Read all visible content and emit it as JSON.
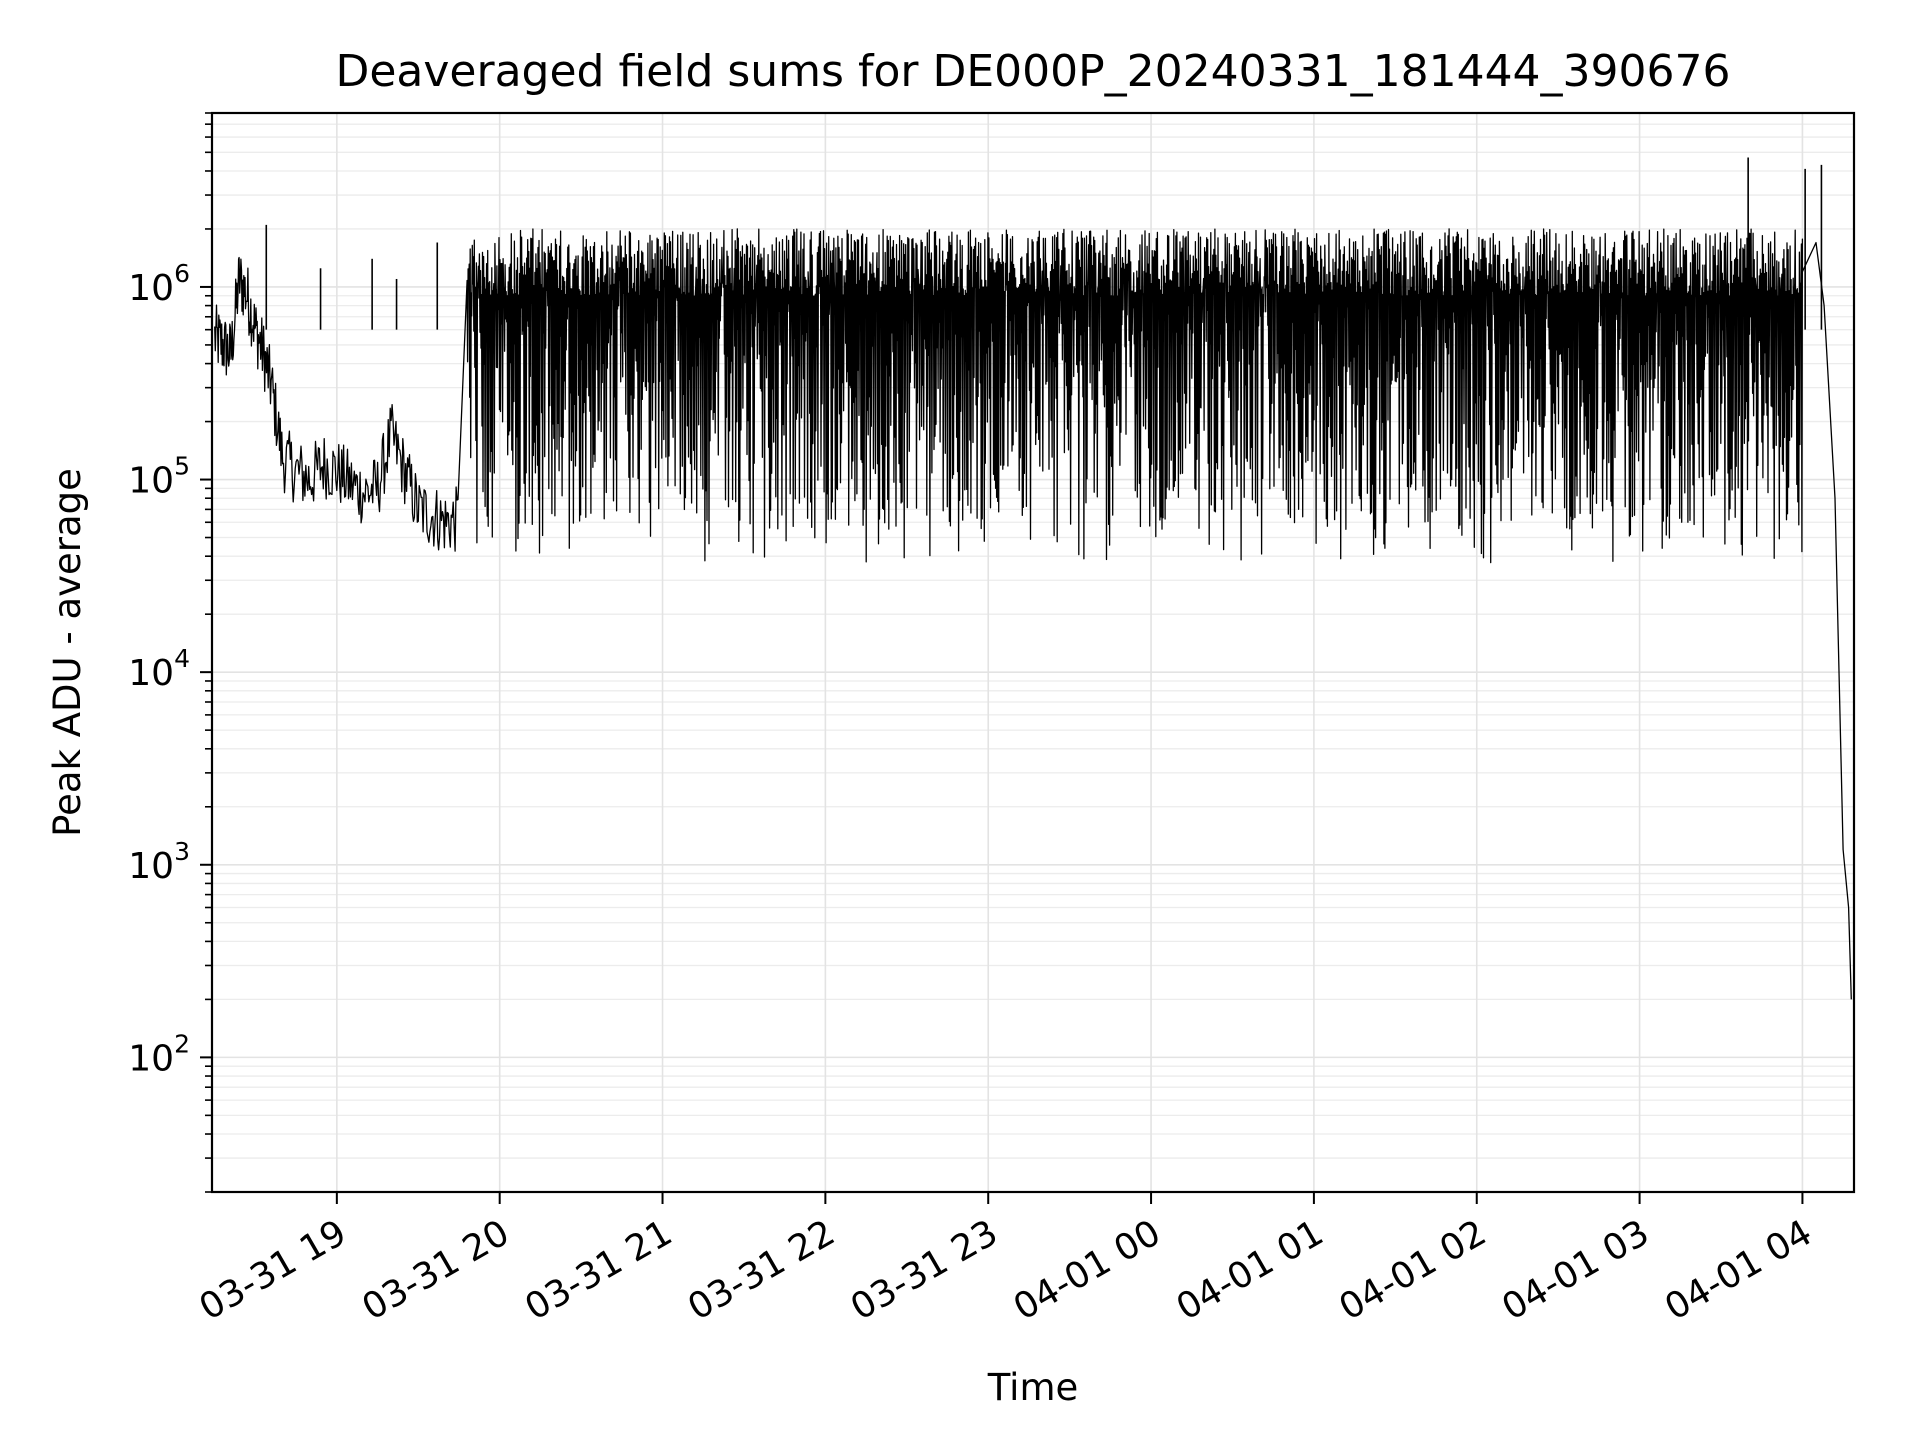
{
  "chart_data": {
    "type": "line",
    "title": "Deaveraged field sums for DE000P_20240331_181444_390676",
    "xlabel": "Time",
    "ylabel": "Peak ADU - average",
    "yscale": "log",
    "ylim": [
      20,
      8000000
    ],
    "xlim": [
      "2024-03-31 18:14",
      "2024-04-01 04:19"
    ],
    "grid": true,
    "series_color": "#000000",
    "x_ticks": [
      {
        "value": "2024-03-31 19:00",
        "label": "03-31 19"
      },
      {
        "value": "2024-03-31 20:00",
        "label": "03-31 20"
      },
      {
        "value": "2024-03-31 21:00",
        "label": "03-31 21"
      },
      {
        "value": "2024-03-31 22:00",
        "label": "03-31 22"
      },
      {
        "value": "2024-03-31 23:00",
        "label": "03-31 23"
      },
      {
        "value": "2024-04-01 00:00",
        "label": "04-01 00"
      },
      {
        "value": "2024-04-01 01:00",
        "label": "04-01 01"
      },
      {
        "value": "2024-04-01 02:00",
        "label": "04-01 02"
      },
      {
        "value": "2024-04-01 03:00",
        "label": "04-01 03"
      },
      {
        "value": "2024-04-01 04:00",
        "label": "04-01 04"
      }
    ],
    "y_ticks": [
      {
        "value": 100,
        "base": "10",
        "exp": "2"
      },
      {
        "value": 1000,
        "base": "10",
        "exp": "3"
      },
      {
        "value": 10000,
        "base": "10",
        "exp": "4"
      },
      {
        "value": 100000,
        "base": "10",
        "exp": "5"
      },
      {
        "value": 1000000,
        "base": "10",
        "exp": "6"
      }
    ],
    "series": [
      {
        "points": [
          [
            "2024-03-31 18:15",
            550000
          ],
          [
            "2024-03-31 18:18",
            500000
          ],
          [
            "2024-03-31 18:21",
            450000
          ],
          [
            "2024-03-31 18:24",
            1100000
          ],
          [
            "2024-03-31 18:27",
            900000
          ],
          [
            "2024-03-31 18:30",
            600000
          ],
          [
            "2024-03-31 18:33",
            450000
          ],
          [
            "2024-03-31 18:36",
            300000
          ],
          [
            "2024-03-31 18:40",
            130000
          ],
          [
            "2024-03-31 18:45",
            110000
          ],
          [
            "2024-03-31 18:50",
            100000
          ],
          [
            "2024-03-31 18:55",
            120000
          ],
          [
            "2024-03-31 19:00",
            110000
          ],
          [
            "2024-03-31 19:05",
            95000
          ],
          [
            "2024-03-31 19:10",
            85000
          ],
          [
            "2024-03-31 19:15",
            90000
          ],
          [
            "2024-03-31 19:20",
            170000
          ],
          [
            "2024-03-31 19:25",
            110000
          ],
          [
            "2024-03-31 19:30",
            70000
          ],
          [
            "2024-03-31 19:35",
            65000
          ],
          [
            "2024-03-31 19:40",
            60000
          ],
          [
            "2024-03-31 19:45",
            62000
          ],
          [
            "2024-03-31 19:50",
            60000
          ],
          [
            "2024-03-31 19:55",
            58000
          ],
          [
            "2024-04-01 04:00",
            1200000
          ],
          [
            "2024-04-01 04:05",
            1700000
          ],
          [
            "2024-04-01 04:08",
            800000
          ],
          [
            "2024-04-01 04:12",
            80000
          ],
          [
            "2024-04-01 04:15",
            1200
          ],
          [
            "2024-04-01 04:17",
            600
          ],
          [
            "2024-04-01 04:18",
            200
          ]
        ],
        "burst_region": {
          "start": "2024-03-31 19:48",
          "end": "2024-04-01 04:00",
          "typical_max": 1450000,
          "typical_min": 55000,
          "max": 1900000,
          "min": 37000
        },
        "spikes": [
          [
            "2024-03-31 18:34",
            2100000
          ],
          [
            "2024-03-31 18:54",
            1250000
          ],
          [
            "2024-03-31 19:13",
            1400000
          ],
          [
            "2024-03-31 19:22",
            1100000
          ],
          [
            "2024-03-31 19:37",
            1700000
          ],
          [
            "2024-04-01 03:40",
            4700000
          ],
          [
            "2024-04-01 04:01",
            4100000
          ],
          [
            "2024-04-01 04:07",
            4300000
          ]
        ]
      }
    ]
  }
}
